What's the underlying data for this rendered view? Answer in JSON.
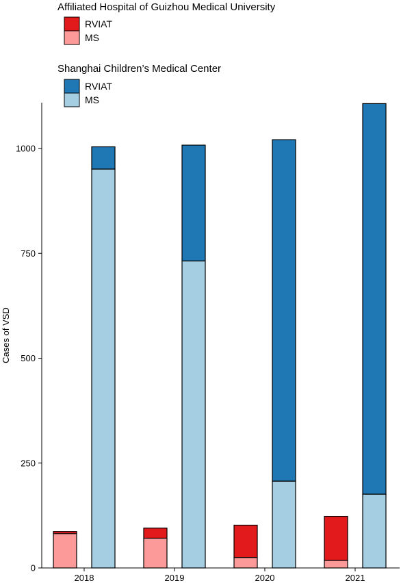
{
  "chart_data": {
    "type": "bar",
    "subtype": "stacked, grouped by hospital",
    "categories": [
      "2018",
      "2019",
      "2020",
      "2021"
    ],
    "ylabel": "Cases of VSD",
    "xlabel": "",
    "ylim": [
      0,
      1110
    ],
    "yticks": [
      0,
      250,
      500,
      750,
      1000
    ],
    "grid": false,
    "legend_position": "top-left",
    "groups": [
      {
        "title": "Affiliated Hospital of Guizhou Medical University",
        "series": [
          {
            "name": "MS",
            "color": "#fb9a99",
            "values": [
              82,
              71,
              25,
              18
            ]
          },
          {
            "name": "RVIAT",
            "color": "#e31a1c",
            "values": [
              5,
              24,
              77,
              105
            ]
          }
        ]
      },
      {
        "title": "Shanghai Children’s Medical Center",
        "series": [
          {
            "name": "MS",
            "color": "#a6cee3",
            "values": [
              951,
              732,
              207,
              176
            ]
          },
          {
            "name": "RVIAT",
            "color": "#1f78b4",
            "values": [
              53,
              276,
              814,
              931
            ]
          }
        ]
      }
    ]
  }
}
